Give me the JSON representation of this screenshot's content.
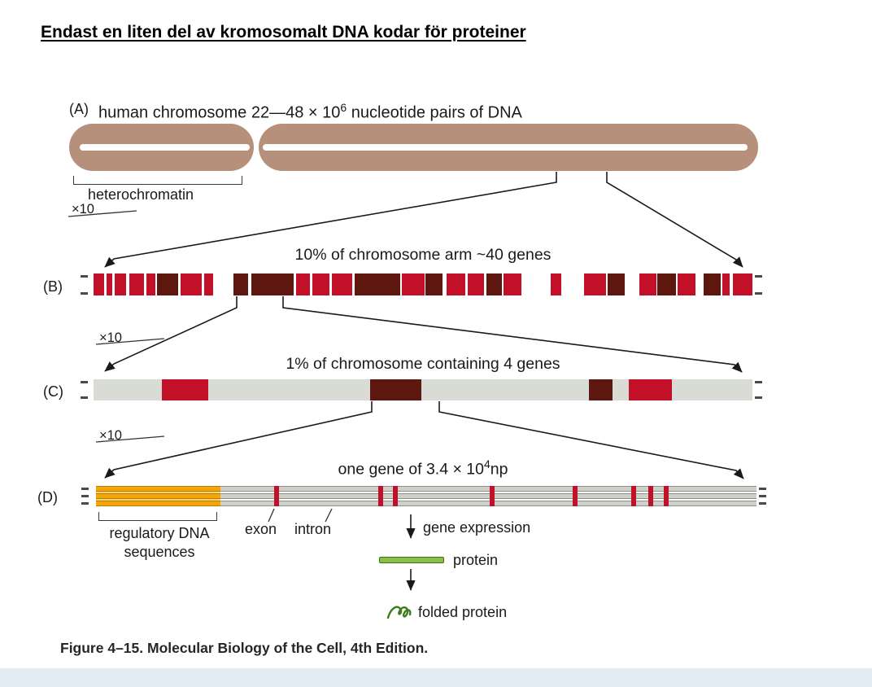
{
  "slide": {
    "title": "Endast en liten del av kromosomalt DNA kodar för proteiner",
    "caption": "Figure 4–15. Molecular Biology of the Cell, 4th Edition."
  },
  "panels": {
    "a": {
      "label": "(A)",
      "title_prefix": "human chromosome 22—48 × 10",
      "title_sup": "6",
      "title_suffix": " nucleotide pairs of DNA",
      "heterochromatin": "heterochromatin",
      "zoom": "×10"
    },
    "b": {
      "label": "(B)",
      "title": "10% of chromosome arm ~40 genes",
      "zoom": "×10"
    },
    "c": {
      "label": "(C)",
      "title": "1% of chromosome containing 4 genes",
      "zoom": "×10"
    },
    "d": {
      "label": "(D)",
      "title_prefix": "one gene of 3.4 × 10",
      "title_sup": "4",
      "title_suffix": "np",
      "regulatory_line1": "regulatory DNA",
      "regulatory_line2": "sequences",
      "exon": "exon",
      "intron": "intron",
      "gene_expression": "gene expression",
      "protein": "protein",
      "folded_protein": "folded protein"
    }
  },
  "colors": {
    "chromosome_tan": "#b6907b",
    "gene_red": "#c11028",
    "gene_dark_brown": "#5e170f",
    "bar_gray": "#d9dcd4",
    "regulatory_orange": "#f4a607",
    "protein_green": "#8bbf4a",
    "protein_green_dark": "#3c711c",
    "footer_strip": "#e3ecf4"
  },
  "bar_b_segments": [
    {
      "x": 0,
      "w": 1.6,
      "c": "red"
    },
    {
      "x": 2.0,
      "w": 0.9,
      "c": "red"
    },
    {
      "x": 3.2,
      "w": 1.8,
      "c": "red"
    },
    {
      "x": 5.4,
      "w": 2.2,
      "c": "red"
    },
    {
      "x": 8.0,
      "w": 1.4,
      "c": "red"
    },
    {
      "x": 9.6,
      "w": 3.2,
      "c": "dark"
    },
    {
      "x": 13.2,
      "w": 3.2,
      "c": "red"
    },
    {
      "x": 16.8,
      "w": 1.4,
      "c": "red"
    },
    {
      "x": 21.2,
      "w": 2.2,
      "c": "dark"
    },
    {
      "x": 24.0,
      "w": 6.4,
      "c": "dark"
    },
    {
      "x": 30.8,
      "w": 2.0,
      "c": "red"
    },
    {
      "x": 33.2,
      "w": 2.6,
      "c": "red"
    },
    {
      "x": 36.2,
      "w": 3.0,
      "c": "red"
    },
    {
      "x": 39.6,
      "w": 7.0,
      "c": "dark"
    },
    {
      "x": 46.8,
      "w": 3.4,
      "c": "red"
    },
    {
      "x": 50.4,
      "w": 2.6,
      "c": "dark"
    },
    {
      "x": 53.6,
      "w": 2.8,
      "c": "red"
    },
    {
      "x": 56.8,
      "w": 2.4,
      "c": "red"
    },
    {
      "x": 59.6,
      "w": 2.4,
      "c": "dark"
    },
    {
      "x": 62.2,
      "w": 2.8,
      "c": "red"
    },
    {
      "x": 69.4,
      "w": 1.6,
      "c": "red"
    },
    {
      "x": 74.4,
      "w": 3.4,
      "c": "red"
    },
    {
      "x": 78.0,
      "w": 2.6,
      "c": "dark"
    },
    {
      "x": 82.8,
      "w": 2.6,
      "c": "red"
    },
    {
      "x": 85.6,
      "w": 2.8,
      "c": "dark"
    },
    {
      "x": 88.6,
      "w": 2.8,
      "c": "red"
    },
    {
      "x": 92.6,
      "w": 2.6,
      "c": "dark"
    },
    {
      "x": 95.4,
      "w": 1.2,
      "c": "red"
    },
    {
      "x": 97.0,
      "w": 3.0,
      "c": "red"
    }
  ],
  "bar_c_segments": [
    {
      "x": 10.4,
      "w": 7.0,
      "c": "red"
    },
    {
      "x": 42.0,
      "w": 7.8,
      "c": "dark"
    },
    {
      "x": 75.2,
      "w": 3.6,
      "c": "dark"
    },
    {
      "x": 81.2,
      "w": 6.6,
      "c": "red"
    }
  ],
  "bar_d": {
    "regulatory_width_pct": 18.8,
    "exon_ticks_pct": [
      27.0,
      42.7,
      44.9,
      59.6,
      72.2,
      81.0,
      83.6,
      86.0
    ]
  }
}
